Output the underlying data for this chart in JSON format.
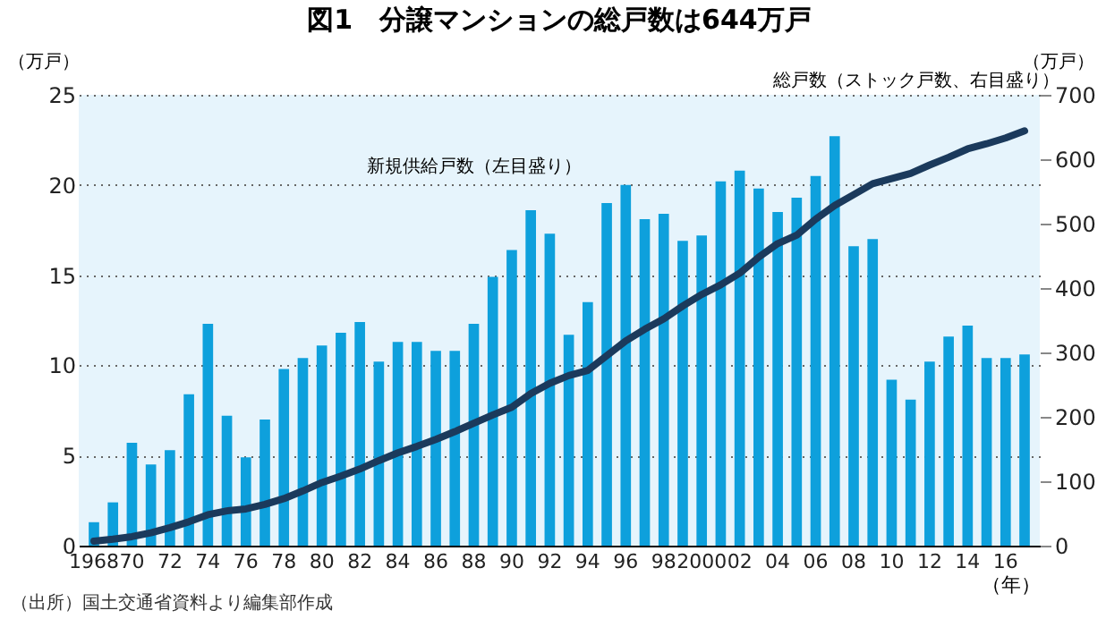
{
  "chart_data": {
    "type": "bar",
    "title": "図1　分譲マンションの総戸数は644万戸",
    "xlabel": "（年）",
    "ylabel": "（万戸）",
    "y2label": "（万戸）",
    "categories": [
      "1968",
      null,
      "70",
      null,
      "72",
      null,
      "74",
      null,
      "76",
      null,
      "78",
      null,
      "80",
      null,
      "82",
      null,
      "84",
      null,
      "86",
      null,
      "88",
      null,
      "90",
      null,
      "92",
      null,
      "94",
      null,
      "96",
      null,
      "98",
      null,
      "2000",
      null,
      "02",
      null,
      "04",
      null,
      "06",
      null,
      "08",
      null,
      "10",
      null,
      "12",
      null,
      "14",
      null,
      "16",
      null
    ],
    "series": [
      {
        "name": "新規供給戸数（左目盛り）",
        "color": "#0ea0dc",
        "values": [
          1.3,
          2.4,
          5.7,
          4.5,
          5.3,
          8.4,
          12.3,
          7.2,
          4.9,
          7.0,
          9.8,
          10.4,
          11.1,
          11.8,
          12.4,
          10.2,
          11.3,
          11.3,
          10.8,
          10.8,
          12.3,
          14.9,
          16.4,
          18.6,
          17.3,
          11.7,
          13.5,
          19.0,
          20.0,
          18.1,
          18.4,
          16.9,
          17.2,
          20.2,
          20.8,
          19.8,
          18.5,
          19.3,
          20.5,
          22.7,
          16.6,
          17.0,
          9.2,
          8.1,
          10.2,
          11.6,
          12.2,
          10.4,
          10.4,
          10.6
        ]
      },
      {
        "type": "line",
        "name": "総戸数（ストック戸数、右目盛り）",
        "axis": "y2",
        "color": "#1b3a5c",
        "values": [
          7,
          10,
          14,
          20,
          28,
          37,
          48,
          54,
          57,
          64,
          73,
          85,
          98,
          108,
          119,
          132,
          144,
          154,
          165,
          177,
          190,
          203,
          215,
          236,
          252,
          264,
          272,
          295,
          318,
          336,
          352,
          372,
          390,
          405,
          423,
          448,
          469,
          482,
          507,
          528,
          545,
          562,
          570,
          578,
          591,
          603,
          616,
          624,
          633,
          644
        ]
      }
    ],
    "ylim": [
      0,
      25
    ],
    "yticks": [
      0,
      5,
      10,
      15,
      20,
      25
    ],
    "y2lim": [
      0,
      700
    ],
    "y2ticks": [
      0,
      100,
      200,
      300,
      400,
      500,
      600,
      700
    ],
    "grid": "y",
    "annotations": [
      "（出所）国土交通省資料より編集部作成"
    ]
  }
}
